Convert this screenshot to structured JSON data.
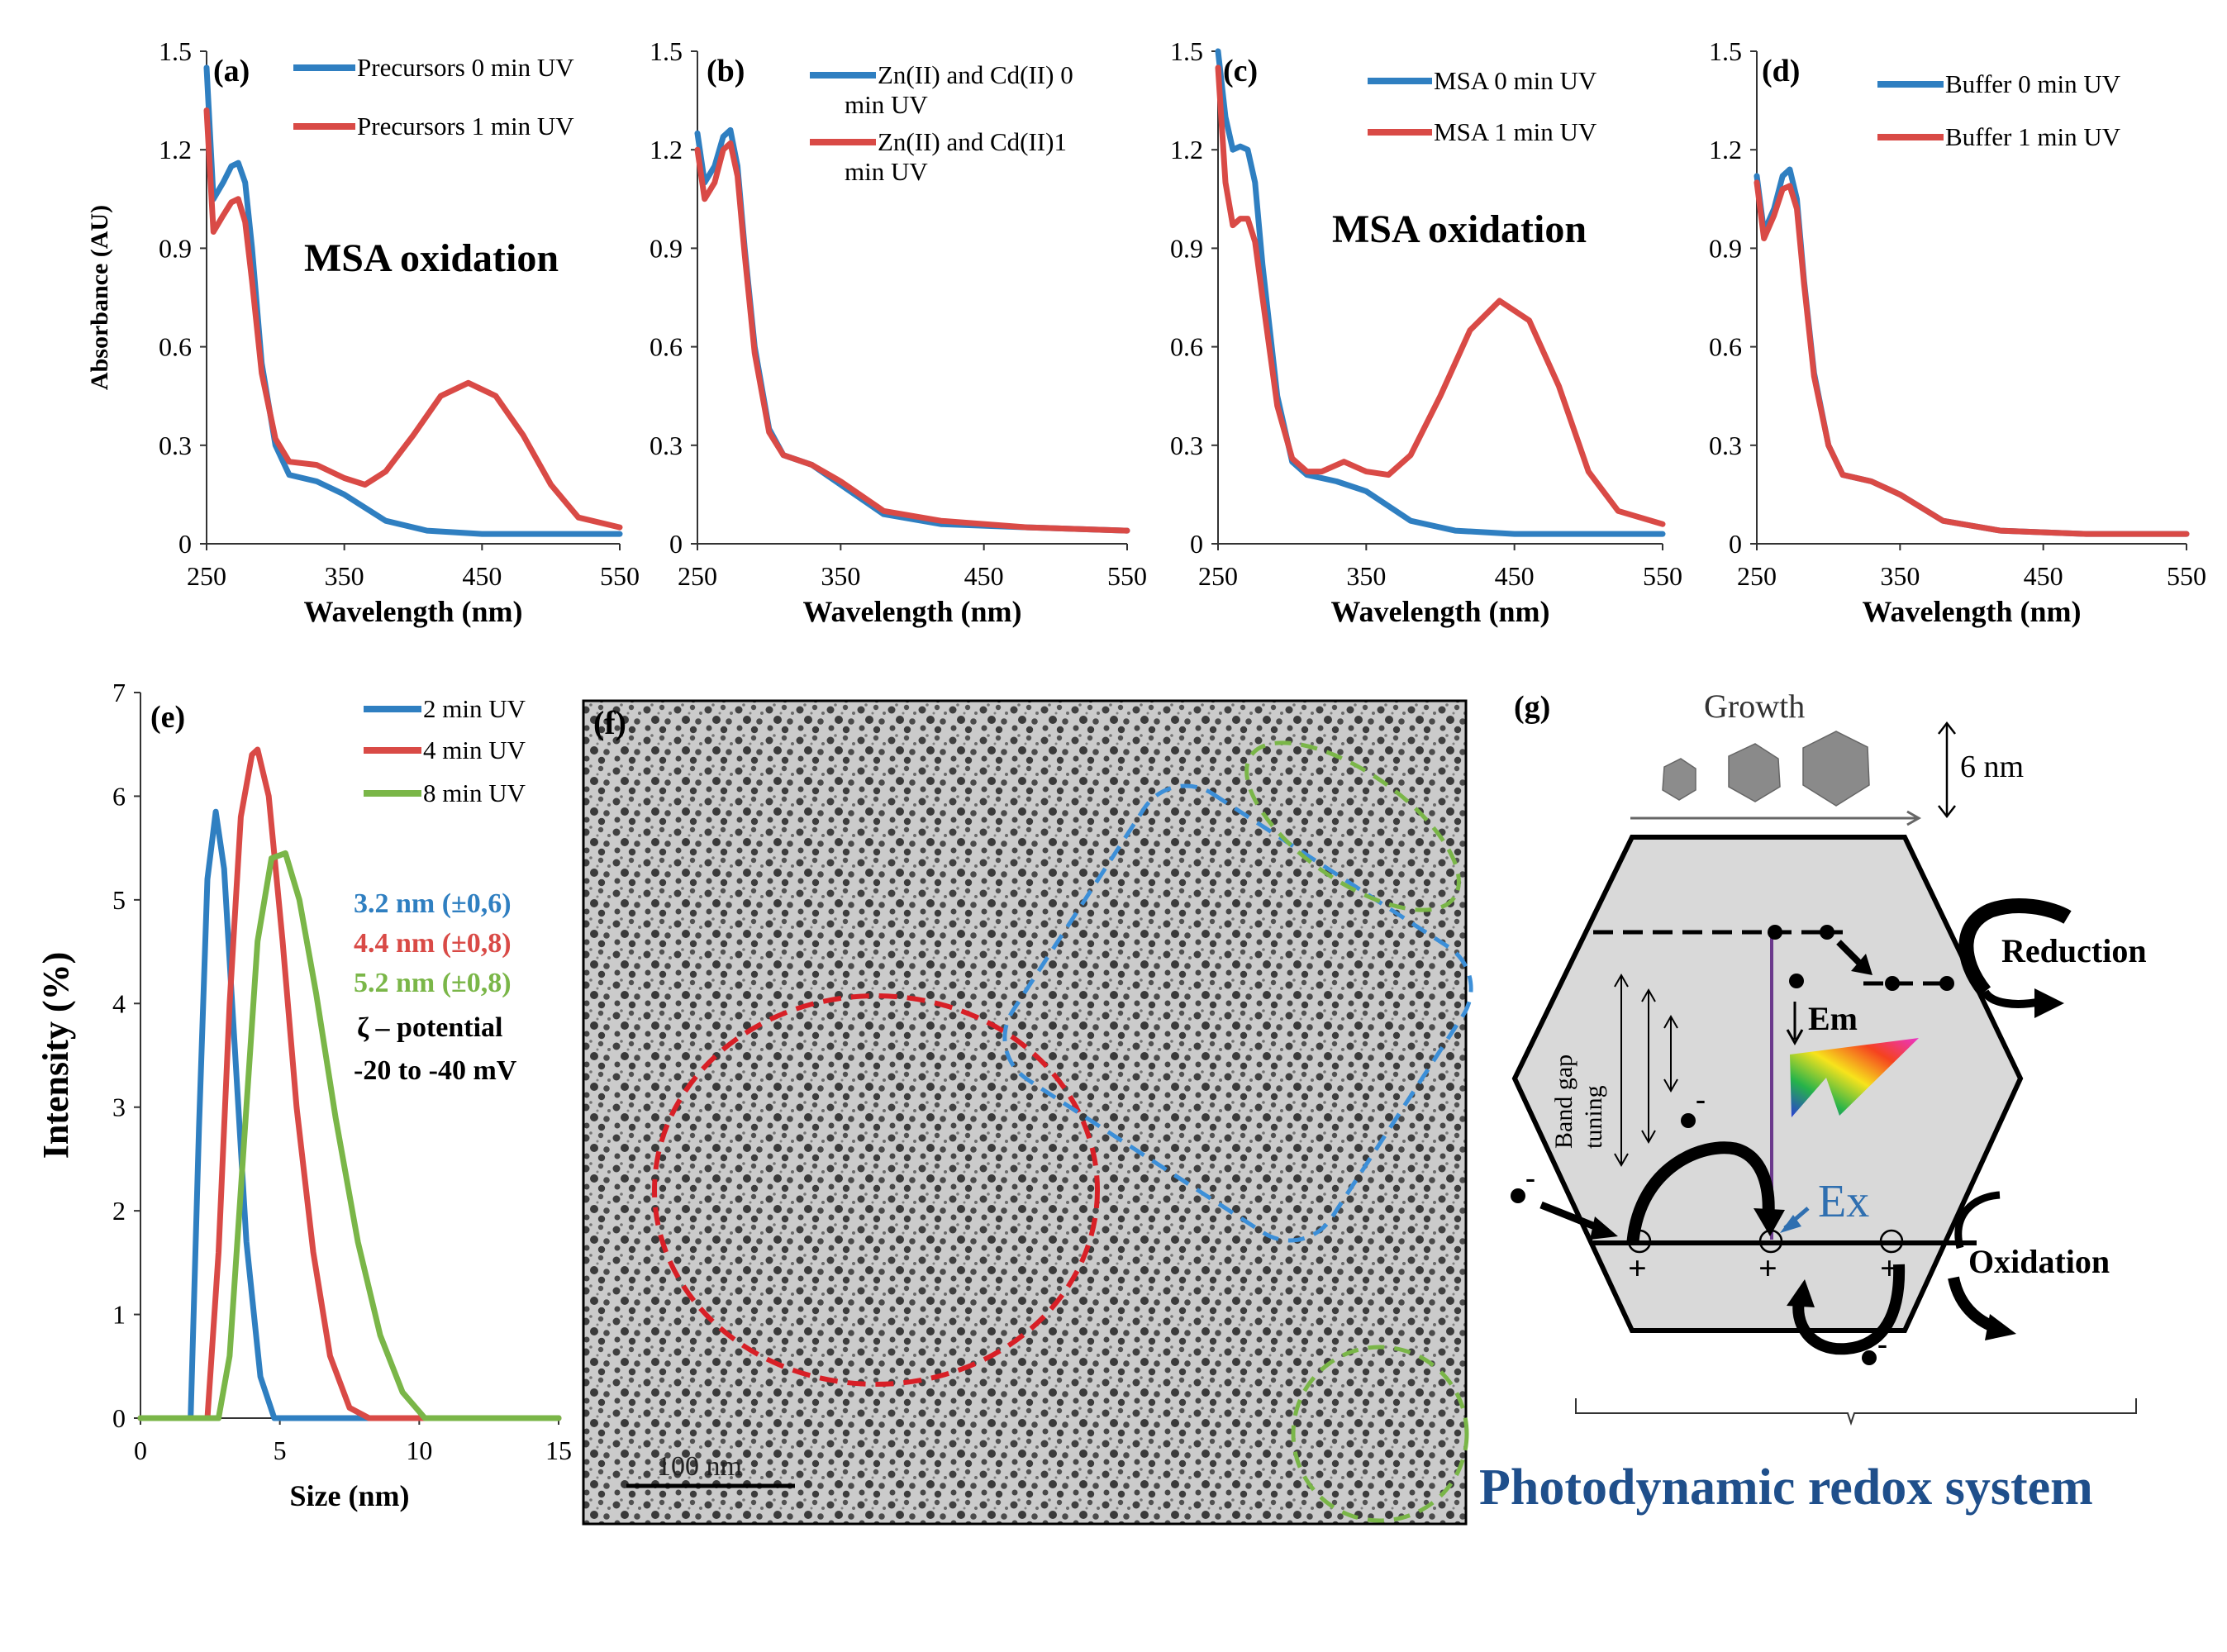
{
  "chart_data": [
    {
      "id": "a",
      "type": "line",
      "panel_label": "(a)",
      "xlabel": "Wavelength (nm)",
      "ylabel": "Absorbance (AU)",
      "xlim": [
        250,
        550
      ],
      "ylim": [
        0,
        1.5
      ],
      "xticks": [
        "250",
        "350",
        "450",
        "550"
      ],
      "yticks": [
        "0",
        "0.3",
        "0.6",
        "0.9",
        "1.2",
        "1.5"
      ],
      "annotation": "MSA oxidation",
      "series": [
        {
          "name": "Precursors 0 min UV",
          "color": "#2f7fc1",
          "x": [
            250,
            255,
            262,
            268,
            273,
            278,
            283,
            290,
            300,
            310,
            330,
            350,
            380,
            410,
            450,
            500,
            550
          ],
          "y": [
            1.45,
            1.05,
            1.1,
            1.15,
            1.16,
            1.1,
            0.9,
            0.55,
            0.3,
            0.21,
            0.19,
            0.15,
            0.07,
            0.04,
            0.03,
            0.03,
            0.03
          ]
        },
        {
          "name": "Precursors 1 min UV",
          "color": "#d94a46",
          "x": [
            250,
            255,
            262,
            268,
            273,
            278,
            283,
            290,
            300,
            310,
            330,
            350,
            365,
            380,
            400,
            420,
            440,
            460,
            480,
            500,
            520,
            550
          ],
          "y": [
            1.32,
            0.95,
            1.0,
            1.04,
            1.05,
            0.98,
            0.8,
            0.52,
            0.32,
            0.25,
            0.24,
            0.2,
            0.18,
            0.22,
            0.33,
            0.45,
            0.49,
            0.45,
            0.33,
            0.18,
            0.08,
            0.05
          ]
        }
      ]
    },
    {
      "id": "b",
      "type": "line",
      "panel_label": "(b)",
      "xlabel": "Wavelength (nm)",
      "ylabel": "",
      "xlim": [
        250,
        550
      ],
      "ylim": [
        0,
        1.5
      ],
      "xticks": [
        "250",
        "350",
        "450",
        "550"
      ],
      "yticks": [
        "0",
        "0.3",
        "0.6",
        "0.9",
        "1.2",
        "1.5"
      ],
      "series": [
        {
          "name": "Zn(II) and Cd(II) 0 min UV",
          "color": "#2f7fc1",
          "x": [
            250,
            255,
            262,
            268,
            273,
            278,
            283,
            290,
            300,
            310,
            330,
            350,
            380,
            420,
            480,
            550
          ],
          "y": [
            1.25,
            1.1,
            1.15,
            1.24,
            1.26,
            1.15,
            0.9,
            0.6,
            0.35,
            0.27,
            0.24,
            0.18,
            0.09,
            0.06,
            0.05,
            0.04
          ]
        },
        {
          "name": "Zn(II) and Cd(II)1 min UV",
          "color": "#d94a46",
          "x": [
            250,
            255,
            262,
            268,
            273,
            278,
            283,
            290,
            300,
            310,
            330,
            350,
            380,
            420,
            480,
            550
          ],
          "y": [
            1.2,
            1.05,
            1.1,
            1.2,
            1.22,
            1.12,
            0.88,
            0.58,
            0.34,
            0.27,
            0.24,
            0.19,
            0.1,
            0.07,
            0.05,
            0.04
          ]
        }
      ]
    },
    {
      "id": "c",
      "type": "line",
      "panel_label": "(c)",
      "xlabel": "Wavelength (nm)",
      "ylabel": "",
      "xlim": [
        250,
        550
      ],
      "ylim": [
        0,
        1.5
      ],
      "xticks": [
        "250",
        "350",
        "450",
        "550"
      ],
      "yticks": [
        "0",
        "0.3",
        "0.6",
        "0.9",
        "1.2",
        "1.5"
      ],
      "annotation": "MSA oxidation",
      "series": [
        {
          "name": "MSA 0 min UV",
          "color": "#2f7fc1",
          "x": [
            250,
            255,
            260,
            265,
            270,
            275,
            280,
            290,
            300,
            310,
            330,
            350,
            380,
            410,
            450,
            500,
            550
          ],
          "y": [
            1.5,
            1.3,
            1.2,
            1.21,
            1.2,
            1.1,
            0.85,
            0.45,
            0.25,
            0.21,
            0.19,
            0.16,
            0.07,
            0.04,
            0.03,
            0.03,
            0.03
          ]
        },
        {
          "name": "MSA 1 min UV",
          "color": "#d94a46",
          "x": [
            250,
            255,
            260,
            265,
            270,
            275,
            280,
            290,
            300,
            310,
            320,
            335,
            350,
            365,
            380,
            400,
            420,
            440,
            460,
            480,
            500,
            520,
            550
          ],
          "y": [
            1.45,
            1.1,
            0.97,
            0.99,
            0.99,
            0.92,
            0.75,
            0.42,
            0.26,
            0.22,
            0.22,
            0.25,
            0.22,
            0.21,
            0.27,
            0.45,
            0.65,
            0.74,
            0.68,
            0.48,
            0.22,
            0.1,
            0.06
          ]
        }
      ]
    },
    {
      "id": "d",
      "type": "line",
      "panel_label": "(d)",
      "xlabel": "Wavelength (nm)",
      "ylabel": "",
      "xlim": [
        250,
        550
      ],
      "ylim": [
        0,
        1.5
      ],
      "xticks": [
        "250",
        "350",
        "450",
        "550"
      ],
      "yticks": [
        "0",
        "0.3",
        "0.6",
        "0.9",
        "1.2",
        "1.5"
      ],
      "series": [
        {
          "name": "Buffer 0  min UV",
          "color": "#2f7fc1",
          "x": [
            250,
            255,
            262,
            268,
            273,
            278,
            283,
            290,
            300,
            310,
            330,
            350,
            380,
            420,
            480,
            550
          ],
          "y": [
            1.12,
            0.95,
            1.02,
            1.12,
            1.14,
            1.05,
            0.8,
            0.52,
            0.3,
            0.21,
            0.19,
            0.15,
            0.07,
            0.04,
            0.03,
            0.03
          ]
        },
        {
          "name": "Buffer 1  min UV",
          "color": "#d94a46",
          "x": [
            250,
            255,
            262,
            268,
            273,
            278,
            283,
            290,
            300,
            310,
            330,
            350,
            380,
            420,
            480,
            550
          ],
          "y": [
            1.1,
            0.93,
            1.0,
            1.08,
            1.09,
            1.02,
            0.79,
            0.51,
            0.3,
            0.21,
            0.19,
            0.15,
            0.07,
            0.04,
            0.03,
            0.03
          ]
        }
      ]
    },
    {
      "id": "e",
      "type": "line",
      "panel_label": "(e)",
      "xlabel": "Size (nm)",
      "ylabel": "Intensity (%)",
      "xlim": [
        0,
        15
      ],
      "ylim": [
        0,
        7
      ],
      "xticks": [
        "0",
        "5",
        "10",
        "15"
      ],
      "yticks": [
        "0",
        "1",
        "2",
        "3",
        "4",
        "5",
        "6",
        "7"
      ],
      "series": [
        {
          "name": "2 min UV",
          "color": "#2f7fc1",
          "x": [
            0,
            1.8,
            2.1,
            2.4,
            2.7,
            3.0,
            3.4,
            3.8,
            4.3,
            4.8,
            15
          ],
          "y": [
            0,
            0,
            2.8,
            5.2,
            5.85,
            5.3,
            3.5,
            1.7,
            0.4,
            0,
            0
          ]
        },
        {
          "name": "4 min UV",
          "color": "#d94a46",
          "x": [
            0,
            2.4,
            2.8,
            3.2,
            3.6,
            4.0,
            4.2,
            4.6,
            5.1,
            5.6,
            6.2,
            6.8,
            7.5,
            8.2,
            15
          ],
          "y": [
            0,
            0,
            1.6,
            4.0,
            5.8,
            6.4,
            6.45,
            6.0,
            4.6,
            3.0,
            1.6,
            0.6,
            0.1,
            0,
            0
          ]
        },
        {
          "name": "8 min UV",
          "color": "#7ab648",
          "x": [
            0,
            2.8,
            3.2,
            3.7,
            4.2,
            4.7,
            5.2,
            5.7,
            6.3,
            7.0,
            7.8,
            8.6,
            9.4,
            10.2,
            15
          ],
          "y": [
            0,
            0,
            0.6,
            2.6,
            4.6,
            5.4,
            5.45,
            5.0,
            4.1,
            2.9,
            1.7,
            0.8,
            0.25,
            0,
            0
          ]
        }
      ],
      "annotations": [
        "3.2 nm (±0,6)",
        "4.4 nm (±0,8)",
        "5.2 nm (±0,8)",
        "ζ – potential",
        "-20 to -40 mV"
      ]
    }
  ],
  "panel_f": {
    "label": "(f)",
    "scale_bar": "100 nm"
  },
  "panel_g": {
    "label": "(g)",
    "growth": "Growth",
    "size": "6 nm",
    "reduction": "Reduction",
    "oxidation": "Oxidation",
    "band_gap_line1": "Band gap",
    "band_gap_line2": "tuning",
    "em": "Em",
    "ex": "Ex",
    "minus": "-",
    "plus": "+",
    "caption": "Photodynamic redox system"
  },
  "colors": {
    "blue": "#2f7fc1",
    "red": "#d94a46",
    "green": "#7ab648",
    "caption": "#1f4f8b"
  }
}
